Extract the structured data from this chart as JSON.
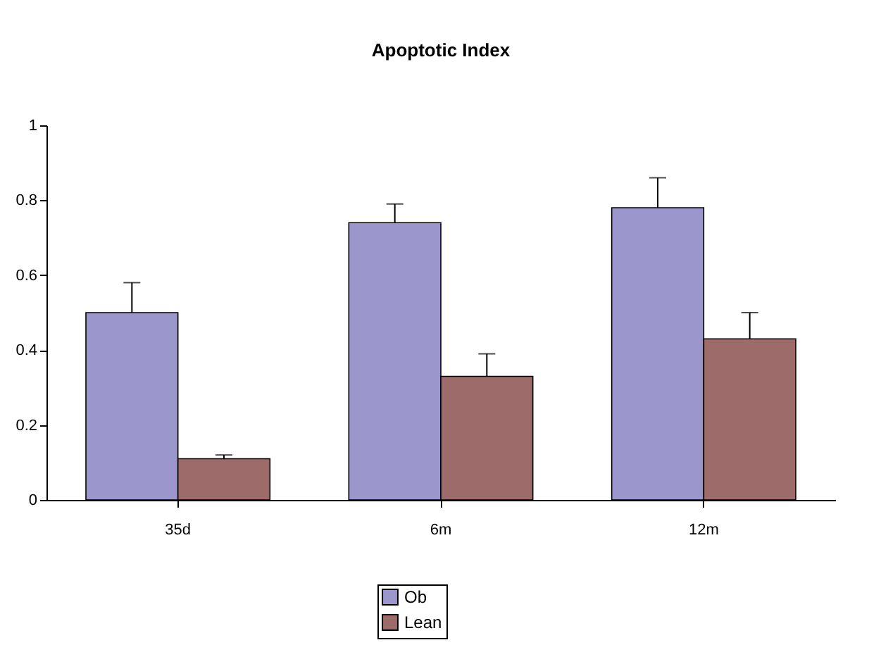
{
  "chart_data": {
    "type": "bar",
    "title": "Apoptotic Index",
    "categories": [
      "35d",
      "6m",
      "12m"
    ],
    "series": [
      {
        "name": "Ob",
        "color": "#9b97cc",
        "values": [
          0.5,
          0.74,
          0.78
        ],
        "errors": [
          [
            0.5,
            0.58
          ],
          [
            0.74,
            0.79
          ],
          [
            0.78,
            0.86
          ]
        ]
      },
      {
        "name": "Lean",
        "color": "#9e6b6b",
        "values": [
          0.11,
          0.33,
          0.43
        ],
        "errors": [
          [
            0.11,
            0.12
          ],
          [
            0.33,
            0.39
          ],
          [
            0.43,
            0.5
          ]
        ]
      }
    ],
    "ylim": [
      0,
      1
    ],
    "yticks": [
      0,
      0.2,
      0.4,
      0.6,
      0.8,
      1
    ],
    "grid": false,
    "legend": "bottom"
  }
}
